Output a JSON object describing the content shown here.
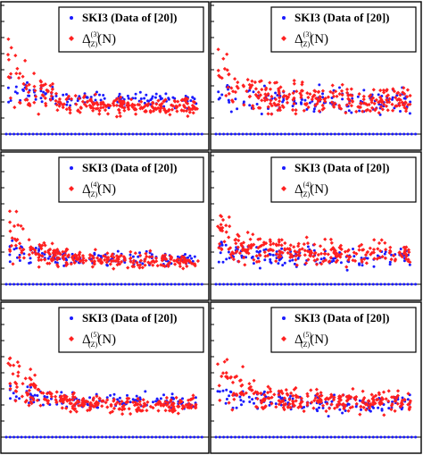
{
  "colors": {
    "series_ski3": "#1a1aff",
    "series_delta": "#ff2020",
    "frame": "#000000"
  },
  "legend": {
    "ski3_label": "SKI3 (Data of [20])",
    "delta_symbol": "Δ",
    "delta_subscript": "(Z)",
    "delta_argument": "(N)"
  },
  "chart_data": [
    {
      "type": "scatter",
      "row": 1,
      "column": 1,
      "delta_order": "(3)",
      "series": [
        {
          "name": "SKI3 (Data of [20])",
          "marker": "point"
        },
        {
          "name": "Δ(3)(Z)(N)",
          "marker": "diamond"
        }
      ],
      "legend_position": "top-right",
      "grid": false
    },
    {
      "type": "scatter",
      "row": 1,
      "column": 2,
      "delta_order": "(3)",
      "series": [
        {
          "name": "SKI3 (Data of [20])",
          "marker": "point"
        },
        {
          "name": "Δ(3)(Z)(N)",
          "marker": "diamond"
        }
      ],
      "legend_position": "top-right",
      "grid": false
    },
    {
      "type": "scatter",
      "row": 2,
      "column": 1,
      "delta_order": "(4)",
      "series": [
        {
          "name": "SKI3 (Data of [20])",
          "marker": "point"
        },
        {
          "name": "Δ(4)(Z)(N)",
          "marker": "diamond"
        }
      ],
      "legend_position": "top-right",
      "grid": false
    },
    {
      "type": "scatter",
      "row": 2,
      "column": 2,
      "delta_order": "(4)",
      "series": [
        {
          "name": "SKI3 (Data of [20])",
          "marker": "point"
        },
        {
          "name": "Δ(4)(Z)(N)",
          "marker": "diamond"
        }
      ],
      "legend_position": "top-right",
      "grid": false
    },
    {
      "type": "scatter",
      "row": 3,
      "column": 1,
      "delta_order": "(5)",
      "series": [
        {
          "name": "SKI3 (Data of [20])",
          "marker": "point"
        },
        {
          "name": "Δ(5)(Z)(N)",
          "marker": "diamond"
        }
      ],
      "legend_position": "top-right",
      "grid": false
    },
    {
      "type": "scatter",
      "row": 3,
      "column": 2,
      "delta_order": "(5)",
      "series": [
        {
          "name": "SKI3 (Data of [20])",
          "marker": "point"
        },
        {
          "name": "Δ(5)(Z)(N)",
          "marker": "diamond"
        }
      ],
      "legend_position": "top-right",
      "grid": false
    }
  ]
}
